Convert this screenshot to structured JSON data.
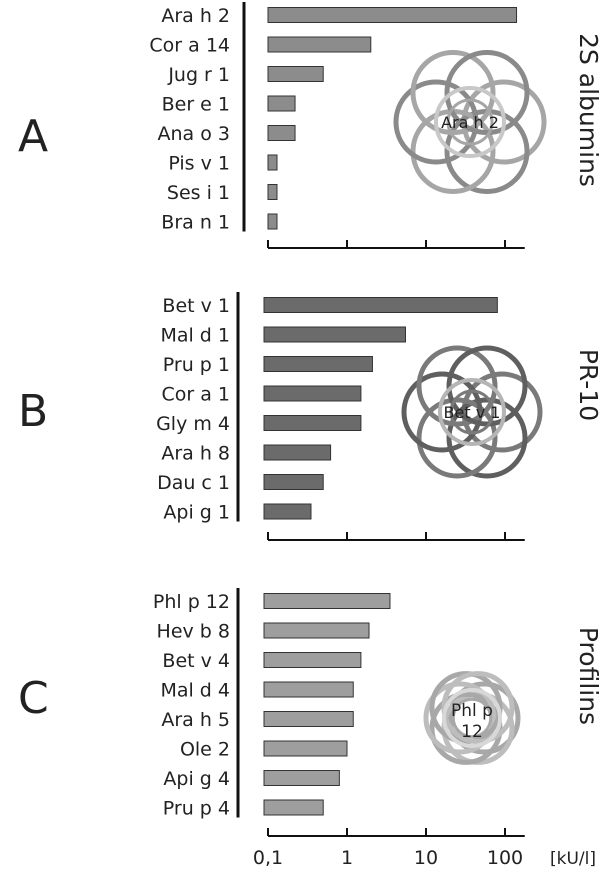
{
  "chart_data": [
    {
      "type": "bar",
      "orientation": "horizontal",
      "panel_letter": "A",
      "group_label": "2S albumins",
      "bar_color": "#8c8c8c",
      "categories": [
        "Ara h 2",
        "Cor a 14",
        "Jug r 1",
        "Ber e 1",
        "Ana o 3",
        "Pis v 1",
        "Ses i 1",
        "Bra n 1"
      ],
      "values": [
        140,
        2,
        0.5,
        0.22,
        0.22,
        0.13,
        0.13,
        0.13
      ],
      "x_scale": "log",
      "xlim": [
        0.1,
        300
      ],
      "venn_label": "Ara h 2",
      "venn_colors": [
        "#a6a6a6",
        "#8a8a8a",
        "#c8c8c8"
      ]
    },
    {
      "type": "bar",
      "orientation": "horizontal",
      "panel_letter": "B",
      "group_label": "PR-10",
      "bar_color": "#6b6b6b",
      "categories": [
        "Bet v 1",
        "Mal d 1",
        "Pru p 1",
        "Cor a 1",
        "Gly m 4",
        "Ara h 8",
        "Dau c 1",
        "Api g 1"
      ],
      "values": [
        80,
        5.5,
        2.1,
        1.5,
        1.5,
        0.62,
        0.5,
        0.35
      ],
      "x_scale": "log",
      "xlim": [
        0.1,
        300
      ],
      "venn_label": "Bet v 1",
      "venn_colors": [
        "#7a7a7a",
        "#5f5f5f",
        "#b5b5b5"
      ]
    },
    {
      "type": "bar",
      "orientation": "horizontal",
      "panel_letter": "C",
      "group_label": "Profilins",
      "bar_color": "#9e9e9e",
      "categories": [
        "Phl p 12",
        "Hev b 8",
        "Bet v 4",
        "Mal d 4",
        "Ara h 5",
        "Ole 2",
        "Api g 4",
        "Pru p 4"
      ],
      "values": [
        3.5,
        1.9,
        1.5,
        1.2,
        1.2,
        1.0,
        0.8,
        0.5
      ],
      "x_scale": "log",
      "xlim": [
        0.1,
        300
      ],
      "venn_label_lines": [
        "Phl p",
        "12"
      ],
      "venn_colors": [
        "#a8a8a8",
        "#bdbdbd",
        "#d8d8d8"
      ],
      "x_tick_labels": [
        "0,1",
        "1",
        "10",
        "100"
      ],
      "x_unit": "[kU/l]"
    }
  ]
}
